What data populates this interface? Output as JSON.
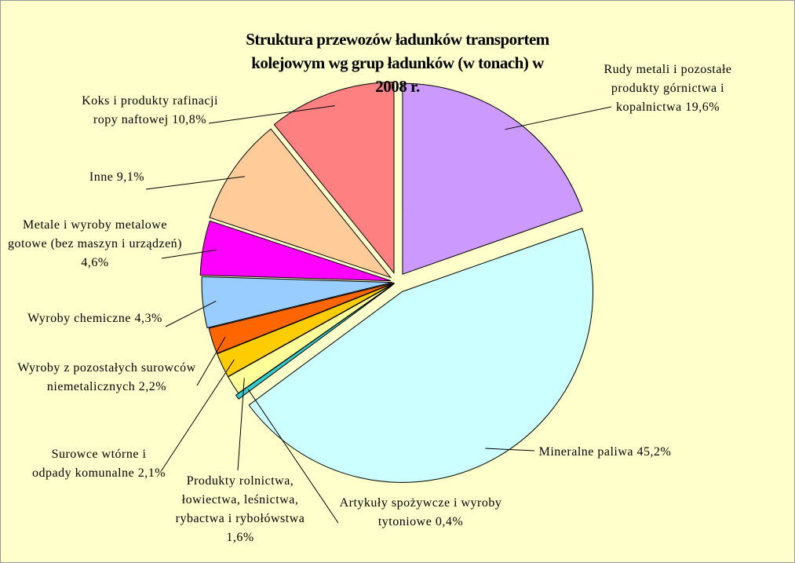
{
  "chart_data": {
    "type": "pie",
    "title": "Struktura przewozów ładunków transportem kolejowym wg grup ładunków (w tonach) w 2008 r.",
    "categories": [
      "Rudy metali i pozostałe produkty górnictwa i kopalnictwa",
      "Mineralne paliwa",
      "Artykuły spożywcze i wyroby tytoniowe",
      "Produkty rolnictwa, łowiectwa, leśnictwa, rybactwa i rybołówstwa",
      "Surowce wtórne i odpady komunalne",
      "Wyroby z pozostałych surowców niemetalicznych",
      "Wyroby chemiczne",
      "Metale i wyroby metalowe gotowe (bez maszyn i urządzeń)",
      "Inne",
      "Koks i produkty rafinacji ropy naftowej"
    ],
    "values": [
      19.6,
      45.2,
      0.4,
      1.6,
      2.1,
      2.2,
      4.3,
      4.6,
      9.1,
      10.8
    ],
    "value_labels": [
      "19,6%",
      "45,2%",
      "0,4%",
      "1,6%",
      "2,1%",
      "2,2%",
      "4,3%",
      "4,6%",
      "9,1%",
      "10,8%"
    ],
    "colors": [
      "#cc99ff",
      "#ccffff",
      "#33cccc",
      "#ffff99",
      "#ffcc00",
      "#ff6600",
      "#99ccff",
      "#ff00ff",
      "#ffcc99",
      "#ff8080"
    ]
  }
}
